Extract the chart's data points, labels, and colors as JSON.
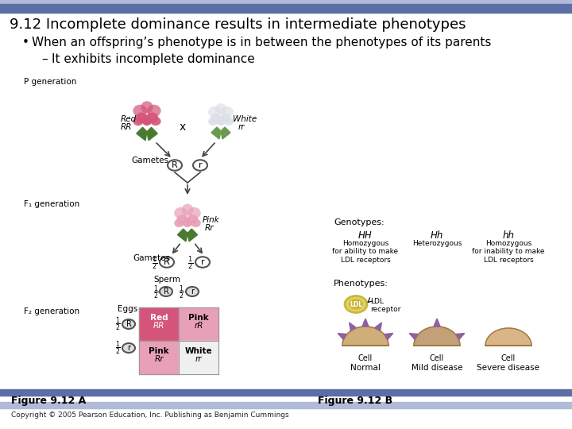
{
  "title": "9.12 Incomplete dominance results in intermediate phenotypes",
  "bullet1": "When an offspring’s phenotype is in between the phenotypes of its parents",
  "bullet2": "It exhibits incomplete dominance",
  "header_bar_color": "#5b6ea6",
  "light_bar_color": "#b0bbd8",
  "bg_color": "#ffffff",
  "fig_label_a": "Figure 9.12 A",
  "fig_label_b": "Figure 9.12 B",
  "copyright": "Copyright © 2005 Pearson Education, Inc. Publishing as Benjamin Cummings",
  "p_gen_label": "P generation",
  "f1_gen_label": "F₁ generation",
  "f2_gen_label": "F₂ generation",
  "genotypes_label": "Genotypes:",
  "phenotypes_label": "Phenotypes:",
  "hh_label": "HH",
  "hr_label": "Hh",
  "hh2_label": "hh",
  "homo_able": "Homozygous\nfor ability to make\nLDL receptors",
  "hetero_label": "Heterozygous",
  "homo_unable": "Homozygous\nfor inability to make\nLDL receptors",
  "normal_label": "Normal",
  "mild_label": "Mild disease",
  "severe_label": "Severe disease",
  "cell_label": "Cell",
  "ldl_label": "LDL",
  "ldl_receptor_label": "LDL\nreceptor",
  "rose_red": "#d4547a",
  "rose_white": "#dde0e8",
  "rose_pink": "#e8a0b8",
  "rose_leaf": "#4a7a30",
  "gamete_border": "#555555",
  "arrow_color": "#444444",
  "box_red_bg": "#d4547a",
  "box_pink_bg": "#e8a0b8",
  "sperm_circle_color": "#dddddd",
  "bottom_bar_color": "#5b6ea6",
  "cell_color_normal": "#c8a060",
  "cell_color_mild": "#b89060",
  "cell_color_severe": "#d4a870",
  "receptor_color": "#9060a0",
  "ldl_particle_color": "#c8b840",
  "ldl_particle_color2": "#e8d060"
}
